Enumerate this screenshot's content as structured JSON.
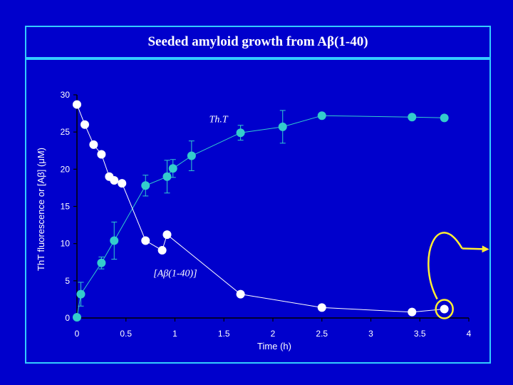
{
  "slide": {
    "title": "Seeded amyloid growth from Aβ(1-40)"
  },
  "chart_data": {
    "type": "scatter",
    "title": "Seeded amyloid growth from Aβ(1-40)",
    "xlabel": "Time (h)",
    "ylabel": "ThT fluorescence or [Aβ] (μM)",
    "xlim": [
      0,
      4
    ],
    "ylim": [
      0,
      30
    ],
    "xticks": [
      0,
      0.5,
      1,
      1.5,
      2,
      2.5,
      3,
      3.5,
      4
    ],
    "xtick_labels": [
      "0",
      "0.5",
      "1",
      "1.5",
      "2",
      "2.5",
      "3",
      "3.5",
      "4"
    ],
    "yticks": [
      0,
      5,
      10,
      15,
      20,
      25,
      30
    ],
    "ytick_labels": [
      "0",
      "5",
      "10",
      "15",
      "20",
      "25",
      "30"
    ],
    "grid": false,
    "series": [
      {
        "name": "Th.T",
        "color": "#33CCCC",
        "points": [
          {
            "x": 0.0,
            "y": 0.1,
            "err": 0
          },
          {
            "x": 0.04,
            "y": 3.2,
            "err": 1.6
          },
          {
            "x": 0.25,
            "y": 7.4,
            "err": 0.8
          },
          {
            "x": 0.38,
            "y": 10.4,
            "err": 2.5
          },
          {
            "x": 0.7,
            "y": 17.8,
            "err": 1.4
          },
          {
            "x": 0.92,
            "y": 19.0,
            "err": 2.2
          },
          {
            "x": 0.98,
            "y": 20.1,
            "err": 1.2
          },
          {
            "x": 1.17,
            "y": 21.8,
            "err": 2.0
          },
          {
            "x": 1.67,
            "y": 24.9,
            "err": 1.0
          },
          {
            "x": 2.1,
            "y": 25.7,
            "err": 2.2
          },
          {
            "x": 2.5,
            "y": 27.2,
            "err": 0.3
          },
          {
            "x": 3.42,
            "y": 27.0,
            "err": 0
          },
          {
            "x": 3.75,
            "y": 26.9,
            "err": 0
          }
        ]
      },
      {
        "name": "[Aβ(1-40)]",
        "color": "#FFFFFF",
        "points": [
          {
            "x": 0.0,
            "y": 28.7
          },
          {
            "x": 0.08,
            "y": 26.0
          },
          {
            "x": 0.17,
            "y": 23.3
          },
          {
            "x": 0.25,
            "y": 22.0
          },
          {
            "x": 0.33,
            "y": 19.0
          },
          {
            "x": 0.38,
            "y": 18.5
          },
          {
            "x": 0.46,
            "y": 18.1
          },
          {
            "x": 0.7,
            "y": 10.4
          },
          {
            "x": 0.87,
            "y": 9.1
          },
          {
            "x": 0.92,
            "y": 11.2
          },
          {
            "x": 1.67,
            "y": 3.2
          },
          {
            "x": 2.5,
            "y": 1.4
          },
          {
            "x": 3.42,
            "y": 0.8
          },
          {
            "x": 3.75,
            "y": 1.2
          }
        ]
      }
    ],
    "annotations": [
      {
        "text": "Th.T",
        "x": 1.35,
        "y": 26.3
      },
      {
        "text": "[Aβ(1-40)]",
        "x": 0.78,
        "y": 5.6
      }
    ],
    "highlight": {
      "x": 3.75,
      "y": 1.2,
      "color": "#FFEE33"
    }
  }
}
